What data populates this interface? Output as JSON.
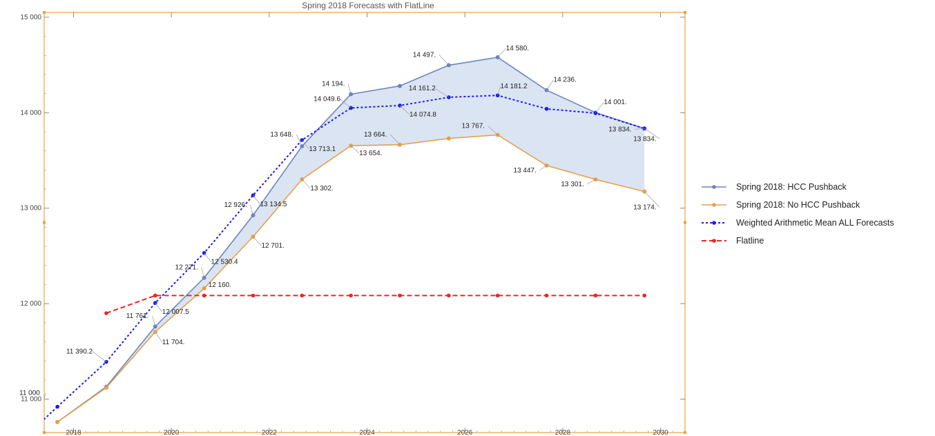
{
  "chart_data": {
    "type": "line",
    "title": "Spring 2018 Forecasts with FlatLine",
    "xlim": [
      2017.4,
      2030.5
    ],
    "ylim": [
      10650,
      15050
    ],
    "x_ticks": [
      2018,
      2020,
      2022,
      2024,
      2026,
      2028,
      2030
    ],
    "y_ticks": [
      11000,
      12000,
      13000,
      14000,
      15000
    ],
    "x_tick_labels": [
      "2018",
      "2020",
      "2022",
      "2024",
      "2026",
      "2028",
      "2030"
    ],
    "y_tick_labels": [
      "11 000",
      "12 000",
      "13 000",
      "14 000",
      "15 000"
    ],
    "band_fill": "#d5dff0",
    "series": [
      {
        "name": "Spring 2018: HCC Pushback",
        "color": "#6a85bd",
        "style": "solid",
        "x": [
          2017.67,
          2018.67,
          2019.67,
          2020.67,
          2021.67,
          2022.67,
          2023.67,
          2024.67,
          2025.67,
          2026.67,
          2027.67,
          2028.67,
          2029.67
        ],
        "values": [
          10760,
          11130,
          11761,
          12271,
          12926,
          13648,
          14194,
          14280,
          14497,
          14580,
          14236,
          14001,
          13834
        ]
      },
      {
        "name": "Spring 2018: No HCC Pushback",
        "color": "#e3a14a",
        "style": "solid",
        "x": [
          2017.67,
          2018.67,
          2019.67,
          2020.67,
          2021.67,
          2022.67,
          2023.67,
          2024.67,
          2025.67,
          2026.67,
          2027.67,
          2028.67,
          2029.67
        ],
        "values": [
          10760,
          11120,
          11704,
          12160,
          12701,
          13302,
          13654,
          13664,
          13730,
          13767,
          13447,
          13301,
          13174
        ]
      },
      {
        "name": "Weighted Arithmetic Mean ALL Forecasts",
        "color": "#1a1aee",
        "style": "dotted",
        "x": [
          2017.67,
          2018.67,
          2019.67,
          2020.67,
          2021.67,
          2022.67,
          2023.67,
          2024.67,
          2025.67,
          2026.67,
          2027.67,
          2028.67,
          2029.67
        ],
        "values": [
          10920,
          11390.2,
          12007.5,
          12530.4,
          13134.5,
          13713.1,
          14049.6,
          14074.8,
          14161.2,
          14181.2,
          14040,
          13995,
          13834
        ]
      },
      {
        "name": "Flatline",
        "color": "#ee2222",
        "style": "dashed",
        "x": [
          2018.67,
          2019.67,
          2020.67,
          2021.67,
          2022.67,
          2023.67,
          2024.67,
          2025.67,
          2026.67,
          2027.67,
          2028.67,
          2029.67
        ],
        "values": [
          11900,
          12085,
          12085,
          12085,
          12085,
          12085,
          12085,
          12085,
          12085,
          12085,
          12085,
          12085
        ]
      }
    ],
    "annotations": [
      {
        "text": "11 000",
        "x": 2017.4,
        "y": 11000,
        "dx": -36,
        "dy": -6
      },
      {
        "text": "11 390.2",
        "x": 2018.67,
        "y": 11390.2,
        "dx": -58,
        "dy": -12
      },
      {
        "text": "11 761.",
        "x": 2019.67,
        "y": 11761,
        "dx": -42,
        "dy": -12
      },
      {
        "text": "11 704.",
        "x": 2019.67,
        "y": 11704,
        "dx": 10,
        "dy": 18
      },
      {
        "text": "12 007.5",
        "x": 2019.67,
        "y": 12007.5,
        "dx": 10,
        "dy": 16
      },
      {
        "text": "12 271.",
        "x": 2020.67,
        "y": 12271,
        "dx": -42,
        "dy": -12
      },
      {
        "text": "12 160.",
        "x": 2020.67,
        "y": 12160,
        "dx": 6,
        "dy": -2
      },
      {
        "text": "12 530.4",
        "x": 2020.67,
        "y": 12530.4,
        "dx": 10,
        "dy": 16
      },
      {
        "text": "12 926.",
        "x": 2021.67,
        "y": 12926,
        "dx": -42,
        "dy": -12
      },
      {
        "text": "12 701.",
        "x": 2021.67,
        "y": 12701,
        "dx": 12,
        "dy": 16
      },
      {
        "text": "13 134.5",
        "x": 2021.67,
        "y": 13134.5,
        "dx": 10,
        "dy": 16
      },
      {
        "text": "13 648.",
        "x": 2022.67,
        "y": 13648,
        "dx": -46,
        "dy": -14
      },
      {
        "text": "13 713.1",
        "x": 2022.67,
        "y": 13713.1,
        "dx": 10,
        "dy": 16
      },
      {
        "text": "13 302.",
        "x": 2022.67,
        "y": 13302,
        "dx": 12,
        "dy": 16
      },
      {
        "text": "14 194.",
        "x": 2023.67,
        "y": 14194,
        "dx": -42,
        "dy": -12
      },
      {
        "text": "14 049.6",
        "x": 2023.67,
        "y": 14049.6,
        "dx": -54,
        "dy": -10
      },
      {
        "text": "13 654.",
        "x": 2023.67,
        "y": 13654,
        "dx": 12,
        "dy": 14
      },
      {
        "text": "13 664.",
        "x": 2024.67,
        "y": 13664,
        "dx": -52,
        "dy": -12
      },
      {
        "text": "14 074.8",
        "x": 2024.67,
        "y": 14074.8,
        "dx": 14,
        "dy": 16
      },
      {
        "text": "14 497.",
        "x": 2025.67,
        "y": 14497,
        "dx": -52,
        "dy": -12
      },
      {
        "text": "14 161.2",
        "x": 2025.67,
        "y": 14161.2,
        "dx": -58,
        "dy": -10
      },
      {
        "text": "13 767.",
        "x": 2026.67,
        "y": 13767,
        "dx": -52,
        "dy": -10
      },
      {
        "text": "14 580.",
        "x": 2026.67,
        "y": 14580,
        "dx": 12,
        "dy": -10
      },
      {
        "text": "14 181.2",
        "x": 2026.67,
        "y": 14181.2,
        "dx": 4,
        "dy": -10
      },
      {
        "text": "14 236.",
        "x": 2027.67,
        "y": 14236,
        "dx": 10,
        "dy": -12
      },
      {
        "text": "13 447.",
        "x": 2027.67,
        "y": 13447,
        "dx": -48,
        "dy": 10
      },
      {
        "text": "14 001.",
        "x": 2028.67,
        "y": 14001,
        "dx": 12,
        "dy": -12
      },
      {
        "text": "13 301.",
        "x": 2028.67,
        "y": 13301,
        "dx": -50,
        "dy": 10
      },
      {
        "text": "13 834.",
        "x": 2029.67,
        "y": 13834,
        "dx": -52,
        "dy": 4
      },
      {
        "text": "13 834.",
        "x": 2029.67,
        "y": 13834,
        "dx": -16,
        "dy": 18
      },
      {
        "text": "13 174.",
        "x": 2029.67,
        "y": 13174,
        "dx": -16,
        "dy": 26
      }
    ],
    "legend_position": "right"
  }
}
